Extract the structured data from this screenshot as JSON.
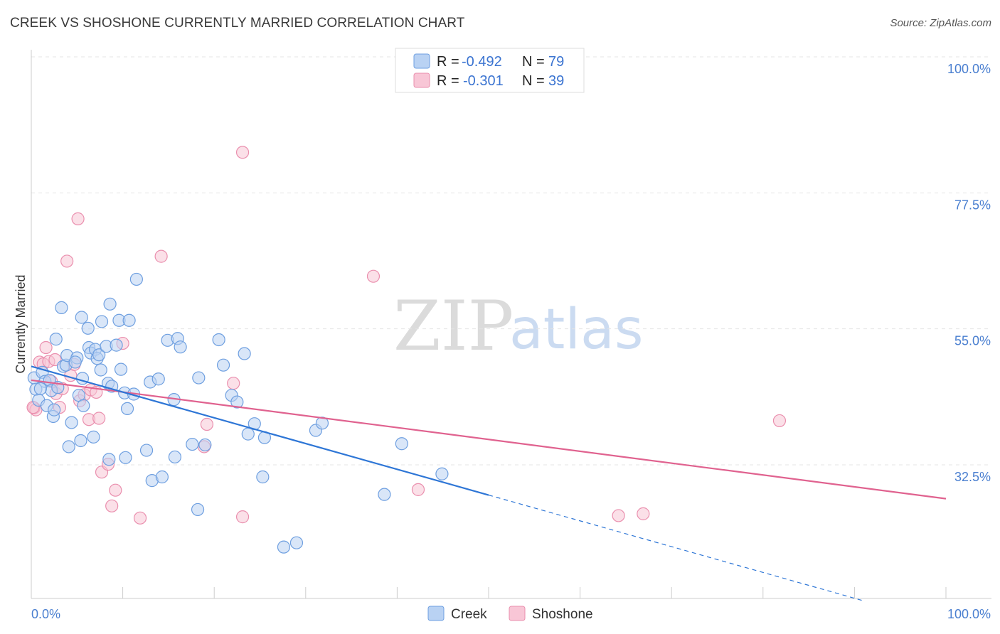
{
  "title": "CREEK VS SHOSHONE CURRENTLY MARRIED CORRELATION CHART",
  "source": "Source: ZipAtlas.com",
  "watermark": {
    "zip": "ZIP",
    "atlas": "atlas"
  },
  "legend": {
    "r_label": "R =",
    "n_label": "N =",
    "entries": [
      {
        "name": "Creek",
        "r": "-0.492",
        "n": "79"
      },
      {
        "name": "Shoshone",
        "r": "-0.301",
        "n": "39"
      }
    ]
  },
  "colors": {
    "creek_fill": "#b9d2f3",
    "creek_stroke": "#6e9fe0",
    "creek_line": "#2e76d6",
    "shoshone_fill": "#f8c6d6",
    "shoshone_stroke": "#ea8fae",
    "shoshone_line": "#e0628f"
  },
  "chart_data": {
    "type": "scatter",
    "title": "CREEK VS SHOSHONE CURRENTLY MARRIED CORRELATION CHART",
    "xlabel": "",
    "ylabel": "Currently Married",
    "xlim": [
      0,
      100
    ],
    "ylim": [
      15,
      102
    ],
    "y_ticks": [
      32.5,
      55.0,
      77.5,
      100.0
    ],
    "y_tick_labels": [
      "32.5%",
      "55.0%",
      "77.5%",
      "100.0%"
    ],
    "x_tick_labels": [
      "0.0%",
      "100.0%"
    ],
    "grid": true,
    "legend_position": "top-center",
    "series": [
      {
        "name": "Creek",
        "trend": {
          "x0": 0,
          "y0": 50.8,
          "x1": 50,
          "y1": 29.5,
          "dashed_to_x": 91,
          "dashed_to_y": 12.0
        },
        "points": [
          [
            0.3,
            48.9
          ],
          [
            0.5,
            47.0
          ],
          [
            0.8,
            45.2
          ],
          [
            1.2,
            49.8
          ],
          [
            1.5,
            48.3
          ],
          [
            1.7,
            44.3
          ],
          [
            2.0,
            48.5
          ],
          [
            2.2,
            46.8
          ],
          [
            2.4,
            42.5
          ],
          [
            2.5,
            43.6
          ],
          [
            2.7,
            55.3
          ],
          [
            2.9,
            47.3
          ],
          [
            3.3,
            60.5
          ],
          [
            3.5,
            50.8
          ],
          [
            3.8,
            51.0
          ],
          [
            3.9,
            52.6
          ],
          [
            4.1,
            37.5
          ],
          [
            4.4,
            41.5
          ],
          [
            5.0,
            52.2
          ],
          [
            5.2,
            46.0
          ],
          [
            5.4,
            38.5
          ],
          [
            5.5,
            58.9
          ],
          [
            5.6,
            48.8
          ],
          [
            5.7,
            44.3
          ],
          [
            6.2,
            57.1
          ],
          [
            6.3,
            53.9
          ],
          [
            6.5,
            53.0
          ],
          [
            6.8,
            39.1
          ],
          [
            7.0,
            53.6
          ],
          [
            7.2,
            52.1
          ],
          [
            7.4,
            52.7
          ],
          [
            7.6,
            50.2
          ],
          [
            7.7,
            58.2
          ],
          [
            8.2,
            54.1
          ],
          [
            8.4,
            48.0
          ],
          [
            8.5,
            35.4
          ],
          [
            8.6,
            61.1
          ],
          [
            8.8,
            47.5
          ],
          [
            9.3,
            54.3
          ],
          [
            9.6,
            58.4
          ],
          [
            9.8,
            50.3
          ],
          [
            10.2,
            46.4
          ],
          [
            10.3,
            35.7
          ],
          [
            10.5,
            43.8
          ],
          [
            10.7,
            58.4
          ],
          [
            11.2,
            46.2
          ],
          [
            11.5,
            65.2
          ],
          [
            12.6,
            36.9
          ],
          [
            13.0,
            48.2
          ],
          [
            13.2,
            31.9
          ],
          [
            13.9,
            48.7
          ],
          [
            14.3,
            32.5
          ],
          [
            14.9,
            55.1
          ],
          [
            15.6,
            45.3
          ],
          [
            15.7,
            35.8
          ],
          [
            16.0,
            55.4
          ],
          [
            16.3,
            54.0
          ],
          [
            17.6,
            37.9
          ],
          [
            18.2,
            27.1
          ],
          [
            18.3,
            48.9
          ],
          [
            19.0,
            37.8
          ],
          [
            20.5,
            55.2
          ],
          [
            21.0,
            51.0
          ],
          [
            21.9,
            46.0
          ],
          [
            22.5,
            44.9
          ],
          [
            23.3,
            52.9
          ],
          [
            23.7,
            39.6
          ],
          [
            24.4,
            41.3
          ],
          [
            25.3,
            32.5
          ],
          [
            25.5,
            39.0
          ],
          [
            27.6,
            20.9
          ],
          [
            29.0,
            21.6
          ],
          [
            31.1,
            40.2
          ],
          [
            31.8,
            41.4
          ],
          [
            38.6,
            29.6
          ],
          [
            40.5,
            38.0
          ],
          [
            44.9,
            33.0
          ],
          [
            4.8,
            51.5
          ],
          [
            1.0,
            47.1
          ]
        ]
      },
      {
        "name": "Shoshone",
        "trend": {
          "x0": 0,
          "y0": 48.5,
          "x1": 100,
          "y1": 28.9
        },
        "points": [
          [
            0.3,
            43.9
          ],
          [
            0.5,
            43.6
          ],
          [
            0.9,
            51.5
          ],
          [
            1.3,
            51.2
          ],
          [
            1.6,
            53.9
          ],
          [
            1.9,
            51.6
          ],
          [
            2.2,
            48.3
          ],
          [
            2.6,
            51.9
          ],
          [
            2.7,
            46.3
          ],
          [
            3.1,
            44.0
          ],
          [
            3.4,
            47.1
          ],
          [
            3.9,
            68.2
          ],
          [
            4.3,
            49.3
          ],
          [
            4.7,
            51.1
          ],
          [
            5.1,
            75.2
          ],
          [
            5.3,
            45.1
          ],
          [
            5.8,
            46.1
          ],
          [
            6.3,
            42.0
          ],
          [
            6.5,
            46.9
          ],
          [
            7.1,
            46.5
          ],
          [
            7.4,
            42.2
          ],
          [
            7.7,
            33.3
          ],
          [
            8.4,
            34.6
          ],
          [
            8.8,
            27.7
          ],
          [
            9.2,
            30.3
          ],
          [
            10.0,
            54.6
          ],
          [
            11.9,
            25.7
          ],
          [
            14.2,
            69.0
          ],
          [
            18.9,
            37.5
          ],
          [
            19.2,
            41.2
          ],
          [
            22.1,
            48.0
          ],
          [
            23.1,
            25.9
          ],
          [
            23.1,
            86.2
          ],
          [
            37.4,
            65.7
          ],
          [
            42.3,
            30.4
          ],
          [
            64.2,
            26.1
          ],
          [
            66.9,
            26.4
          ],
          [
            81.8,
            41.8
          ],
          [
            0.2,
            44.0
          ]
        ]
      }
    ]
  }
}
